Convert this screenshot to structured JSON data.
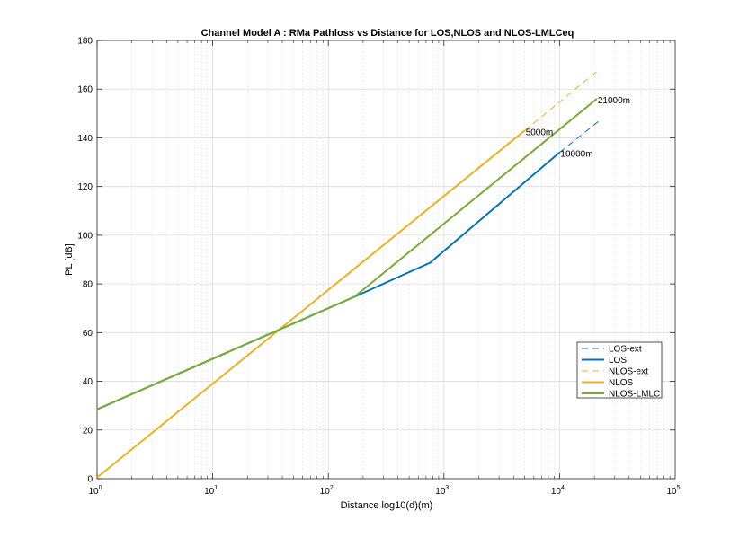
{
  "chart_data": {
    "type": "line",
    "title": "Channel Model A : RMa Pathloss vs Distance for LOS,NLOS and NLOS-LMLCeq",
    "xlabel": "Distance log10(d)(m)",
    "ylabel": "PL [dB]",
    "xscale": "log",
    "xlim": [
      1,
      100000
    ],
    "ylim": [
      0,
      180
    ],
    "grid": true,
    "legend_position": "lower-right",
    "x_ticks": [
      {
        "base": "10",
        "exp": "0",
        "value": 1
      },
      {
        "base": "10",
        "exp": "1",
        "value": 10
      },
      {
        "base": "10",
        "exp": "2",
        "value": 100
      },
      {
        "base": "10",
        "exp": "3",
        "value": 1000
      },
      {
        "base": "10",
        "exp": "4",
        "value": 10000
      },
      {
        "base": "10",
        "exp": "5",
        "value": 100000
      }
    ],
    "y_ticks": [
      "0",
      "20",
      "40",
      "60",
      "80",
      "100",
      "120",
      "140",
      "160",
      "180"
    ],
    "series": [
      {
        "name": "LOS-ext",
        "color": "#0072BD",
        "style": "dashed",
        "x": [
          10000,
          22000
        ],
        "y": [
          134,
          147
        ]
      },
      {
        "name": "LOS",
        "color": "#0072BD",
        "style": "solid",
        "x": [
          1,
          168,
          760,
          10000
        ],
        "y": [
          28.5,
          74.7,
          88.7,
          134
        ]
      },
      {
        "name": "NLOS-ext",
        "color": "#EDB120",
        "style": "dashed",
        "x": [
          5000,
          22000
        ],
        "y": [
          143,
          168
        ]
      },
      {
        "name": "NLOS",
        "color": "#EDB120",
        "style": "solid",
        "x": [
          1,
          5000
        ],
        "y": [
          0.5,
          143
        ]
      },
      {
        "name": "NLOS-LMLC",
        "color": "#77AC30",
        "style": "solid",
        "x": [
          1,
          168,
          21000
        ],
        "y": [
          28.5,
          74.7,
          156
        ]
      }
    ],
    "annotations": [
      {
        "text": "5000m",
        "x": 5000,
        "y": 143
      },
      {
        "text": "10000m",
        "x": 10000,
        "y": 134
      },
      {
        "text": "21000m",
        "x": 21000,
        "y": 156
      }
    ]
  }
}
